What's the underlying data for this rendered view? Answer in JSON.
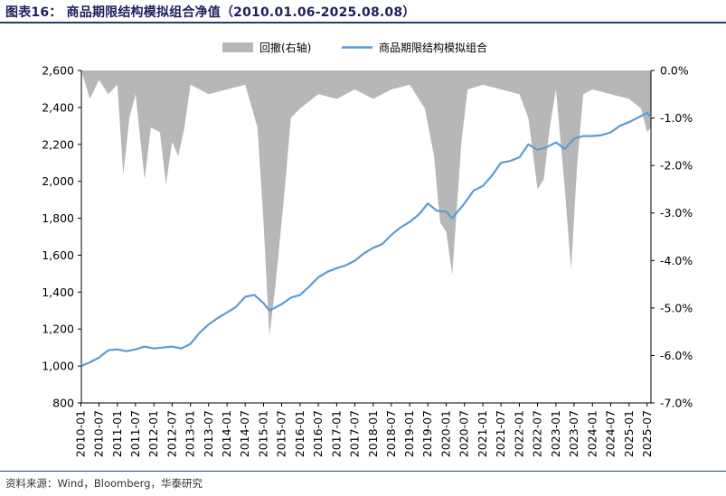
{
  "header": {
    "title": "图表16： 商品期限结构模拟组合净值（2010.01.06-2025.08.08）"
  },
  "footer": {
    "source": "资料来源：Wind，Bloomberg，华泰研究"
  },
  "colors": {
    "line": "#5b9bd5",
    "drawdown": "#b7b7b7",
    "rule": "#1f3e7a"
  },
  "chart_data": {
    "type": "line",
    "title": "",
    "legend": {
      "position": "top-right"
    },
    "left_axis": {
      "ylim": [
        800,
        2600
      ],
      "ticks": [
        "2,600",
        "2,400",
        "2,200",
        "2,000",
        "1,800",
        "1,600",
        "1,400",
        "1,200",
        "1,000",
        "800"
      ]
    },
    "right_axis": {
      "ylim": [
        -7.0,
        0.0
      ],
      "ticks": [
        "0.0%",
        "-1.0%",
        "-2.0%",
        "-3.0%",
        "-4.0%",
        "-5.0%",
        "-6.0%",
        "-7.0%"
      ]
    },
    "x_ticks": [
      "2010-01",
      "2010-07",
      "2011-01",
      "2011-07",
      "2012-01",
      "2012-07",
      "2013-01",
      "2013-07",
      "2014-01",
      "2014-07",
      "2015-01",
      "2015-07",
      "2016-01",
      "2016-07",
      "2017-01",
      "2017-07",
      "2018-01",
      "2018-07",
      "2019-01",
      "2019-07",
      "2020-01",
      "2020-07",
      "2021-01",
      "2021-07",
      "2022-01",
      "2022-07",
      "2023-01",
      "2023-07",
      "2024-01",
      "2024-07",
      "2025-01",
      "2025-07"
    ],
    "x_range": [
      "2010-01-06",
      "2025-08-08"
    ],
    "series": [
      {
        "name": "商品期限结构模拟组合",
        "axis": "left",
        "points": [
          [
            "2010-01-06",
            1000
          ],
          [
            "2010-04-01",
            1020
          ],
          [
            "2010-07-01",
            1045
          ],
          [
            "2010-10-01",
            1085
          ],
          [
            "2011-01-01",
            1090
          ],
          [
            "2011-04-01",
            1080
          ],
          [
            "2011-07-01",
            1090
          ],
          [
            "2011-10-01",
            1105
          ],
          [
            "2012-01-01",
            1095
          ],
          [
            "2012-04-01",
            1100
          ],
          [
            "2012-07-01",
            1105
          ],
          [
            "2012-10-01",
            1095
          ],
          [
            "2013-01-01",
            1120
          ],
          [
            "2013-04-01",
            1180
          ],
          [
            "2013-07-01",
            1225
          ],
          [
            "2013-10-01",
            1260
          ],
          [
            "2014-01-01",
            1290
          ],
          [
            "2014-04-01",
            1320
          ],
          [
            "2014-07-01",
            1375
          ],
          [
            "2014-10-01",
            1385
          ],
          [
            "2015-01-01",
            1340
          ],
          [
            "2015-03-01",
            1300
          ],
          [
            "2015-07-01",
            1335
          ],
          [
            "2015-10-01",
            1370
          ],
          [
            "2016-01-01",
            1385
          ],
          [
            "2016-04-01",
            1430
          ],
          [
            "2016-07-01",
            1480
          ],
          [
            "2016-10-01",
            1510
          ],
          [
            "2017-01-01",
            1530
          ],
          [
            "2017-04-01",
            1545
          ],
          [
            "2017-07-01",
            1570
          ],
          [
            "2017-10-01",
            1610
          ],
          [
            "2018-01-01",
            1640
          ],
          [
            "2018-04-01",
            1660
          ],
          [
            "2018-07-01",
            1710
          ],
          [
            "2018-10-01",
            1750
          ],
          [
            "2019-01-01",
            1780
          ],
          [
            "2019-04-01",
            1820
          ],
          [
            "2019-07-01",
            1880
          ],
          [
            "2019-10-01",
            1840
          ],
          [
            "2020-01-01",
            1835
          ],
          [
            "2020-03-01",
            1800
          ],
          [
            "2020-07-01",
            1880
          ],
          [
            "2020-10-01",
            1950
          ],
          [
            "2021-01-01",
            1975
          ],
          [
            "2021-04-01",
            2030
          ],
          [
            "2021-07-01",
            2100
          ],
          [
            "2021-10-01",
            2110
          ],
          [
            "2022-01-01",
            2130
          ],
          [
            "2022-04-01",
            2200
          ],
          [
            "2022-07-01",
            2170
          ],
          [
            "2022-10-01",
            2185
          ],
          [
            "2023-01-01",
            2210
          ],
          [
            "2023-04-01",
            2175
          ],
          [
            "2023-07-01",
            2230
          ],
          [
            "2023-10-01",
            2245
          ],
          [
            "2024-01-01",
            2245
          ],
          [
            "2024-04-01",
            2250
          ],
          [
            "2024-07-01",
            2265
          ],
          [
            "2024-10-01",
            2300
          ],
          [
            "2025-01-01",
            2320
          ],
          [
            "2025-04-01",
            2345
          ],
          [
            "2025-07-01",
            2370
          ],
          [
            "2025-08-08",
            2345
          ]
        ]
      },
      {
        "name": "回撤(右轴)",
        "type": "area",
        "axis": "right",
        "points": [
          [
            "2010-01-06",
            0
          ],
          [
            "2010-04-01",
            -0.6
          ],
          [
            "2010-07-01",
            -0.2
          ],
          [
            "2010-10-01",
            -0.5
          ],
          [
            "2011-01-01",
            -0.3
          ],
          [
            "2011-03-01",
            -2.2
          ],
          [
            "2011-05-01",
            -1.0
          ],
          [
            "2011-07-01",
            -0.5
          ],
          [
            "2011-10-01",
            -2.3
          ],
          [
            "2011-12-01",
            -1.2
          ],
          [
            "2012-03-01",
            -1.3
          ],
          [
            "2012-05-01",
            -2.4
          ],
          [
            "2012-07-01",
            -1.5
          ],
          [
            "2012-09-01",
            -1.8
          ],
          [
            "2012-11-01",
            -1.2
          ],
          [
            "2013-01-01",
            -0.3
          ],
          [
            "2013-07-01",
            -0.5
          ],
          [
            "2014-01-01",
            -0.4
          ],
          [
            "2014-07-01",
            -0.3
          ],
          [
            "2014-11-01",
            -1.2
          ],
          [
            "2015-01-01",
            -3.2
          ],
          [
            "2015-03-01",
            -5.6
          ],
          [
            "2015-05-01",
            -4.5
          ],
          [
            "2015-08-01",
            -2.5
          ],
          [
            "2015-10-01",
            -1.0
          ],
          [
            "2016-01-01",
            -0.8
          ],
          [
            "2016-07-01",
            -0.5
          ],
          [
            "2017-01-01",
            -0.6
          ],
          [
            "2017-07-01",
            -0.4
          ],
          [
            "2018-01-01",
            -0.6
          ],
          [
            "2018-07-01",
            -0.4
          ],
          [
            "2019-01-01",
            -0.3
          ],
          [
            "2019-06-01",
            -0.8
          ],
          [
            "2019-09-01",
            -1.8
          ],
          [
            "2019-11-01",
            -3.2
          ],
          [
            "2020-01-01",
            -3.4
          ],
          [
            "2020-03-01",
            -4.3
          ],
          [
            "2020-06-01",
            -1.5
          ],
          [
            "2020-08-01",
            -0.4
          ],
          [
            "2021-01-01",
            -0.3
          ],
          [
            "2021-07-01",
            -0.4
          ],
          [
            "2022-01-01",
            -0.5
          ],
          [
            "2022-04-01",
            -1.0
          ],
          [
            "2022-07-01",
            -2.5
          ],
          [
            "2022-09-01",
            -2.3
          ],
          [
            "2022-11-01",
            -1.2
          ],
          [
            "2023-01-01",
            -0.4
          ],
          [
            "2023-04-01",
            -2.5
          ],
          [
            "2023-06-01",
            -4.2
          ],
          [
            "2023-08-01",
            -2.0
          ],
          [
            "2023-10-01",
            -0.5
          ],
          [
            "2024-01-01",
            -0.4
          ],
          [
            "2024-07-01",
            -0.5
          ],
          [
            "2025-01-01",
            -0.6
          ],
          [
            "2025-05-01",
            -0.8
          ],
          [
            "2025-07-01",
            -1.3
          ],
          [
            "2025-08-08",
            -1.2
          ]
        ]
      }
    ]
  }
}
